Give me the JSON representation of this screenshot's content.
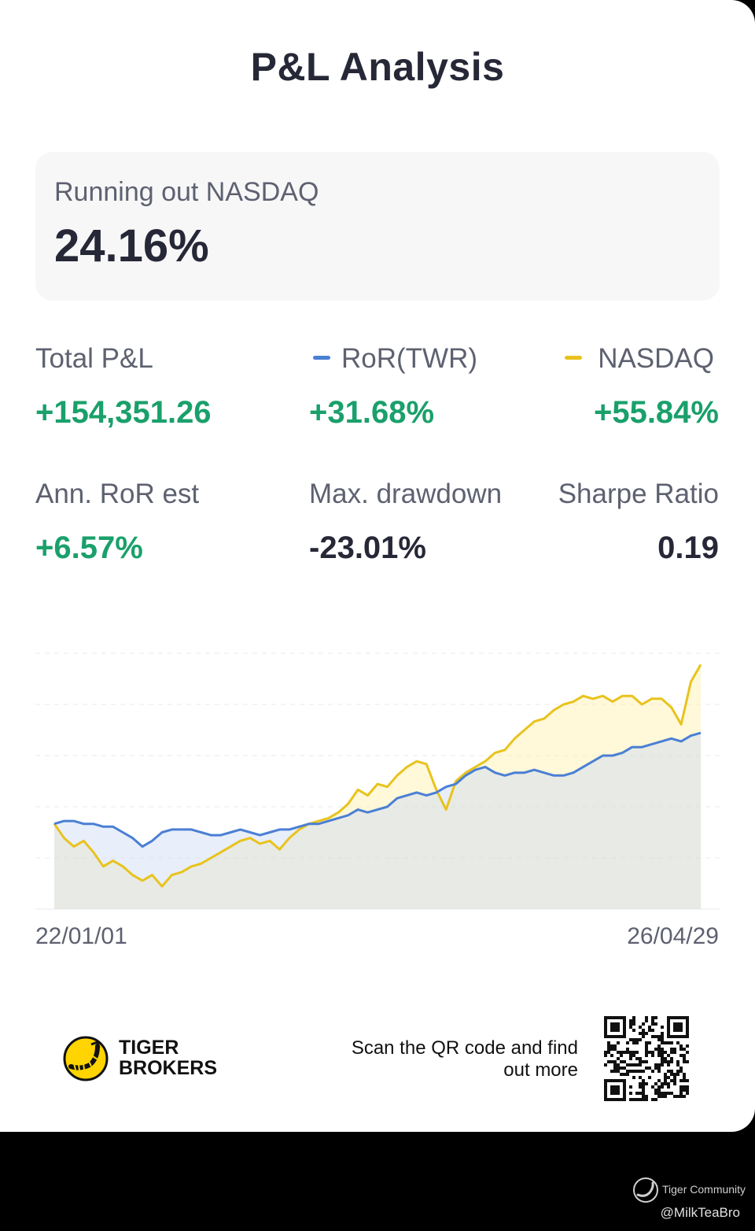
{
  "page_title": "P&L Analysis",
  "summary": {
    "label": "Running out NASDAQ",
    "value": "24.16%"
  },
  "metrics": {
    "total_pl": {
      "label": "Total P&L",
      "value": "+154,351.26"
    },
    "ror_twr": {
      "label": "RoR(TWR)",
      "value": "+31.68%"
    },
    "nasdaq": {
      "label": "NASDAQ",
      "value": "+55.84%"
    },
    "ann_ror": {
      "label": "Ann. RoR est",
      "value": "+6.57%"
    },
    "max_drawdown": {
      "label": "Max. drawdown",
      "value": "-23.01%"
    },
    "sharpe": {
      "label": "Sharpe Ratio",
      "value": "0.19"
    }
  },
  "colors": {
    "positive": "#1aa06b",
    "ror_line": "#4a7fd4",
    "nasdaq_line": "#e8c31c"
  },
  "chart_data": {
    "type": "line",
    "x_start": "22/01/01",
    "x_end": "26/04/29",
    "grid": true,
    "legend": "top",
    "series": [
      {
        "name": "RoR(TWR)",
        "color": "#4a7fd4",
        "values": [
          0,
          1,
          1,
          0,
          0,
          -1,
          -1,
          -3,
          -5,
          -8,
          -6,
          -3,
          -2,
          -2,
          -2,
          -3,
          -4,
          -4,
          -3,
          -2,
          -3,
          -4,
          -3,
          -2,
          -2,
          -1,
          0,
          0,
          1,
          2,
          3,
          5,
          4,
          5,
          6,
          9,
          10,
          11,
          10,
          11,
          13,
          14,
          17,
          19,
          20,
          18,
          17,
          18,
          18,
          19,
          18,
          17,
          17,
          18,
          20,
          22,
          24,
          24,
          25,
          27,
          27,
          28,
          29,
          30,
          29,
          31,
          32
        ]
      },
      {
        "name": "NASDAQ",
        "color": "#e8c31c",
        "values": [
          0,
          -5,
          -8,
          -6,
          -10,
          -15,
          -13,
          -15,
          -18,
          -20,
          -18,
          -22,
          -18,
          -17,
          -15,
          -14,
          -12,
          -10,
          -8,
          -6,
          -5,
          -7,
          -6,
          -9,
          -5,
          -2,
          0,
          1,
          2,
          4,
          7,
          12,
          10,
          14,
          13,
          17,
          20,
          22,
          21,
          12,
          5,
          15,
          18,
          20,
          22,
          25,
          26,
          30,
          33,
          36,
          37,
          40,
          42,
          43,
          45,
          44,
          45,
          43,
          45,
          45,
          42,
          44,
          44,
          41,
          35,
          50,
          56
        ]
      }
    ],
    "y_range": [
      -30,
      60
    ]
  },
  "footer": {
    "brand_line1": "TIGER",
    "brand_line2": "BROKERS",
    "scan_text": "Scan the QR code and find out more",
    "community": "Tiger Community",
    "handle": "@MilkTeaBro"
  }
}
